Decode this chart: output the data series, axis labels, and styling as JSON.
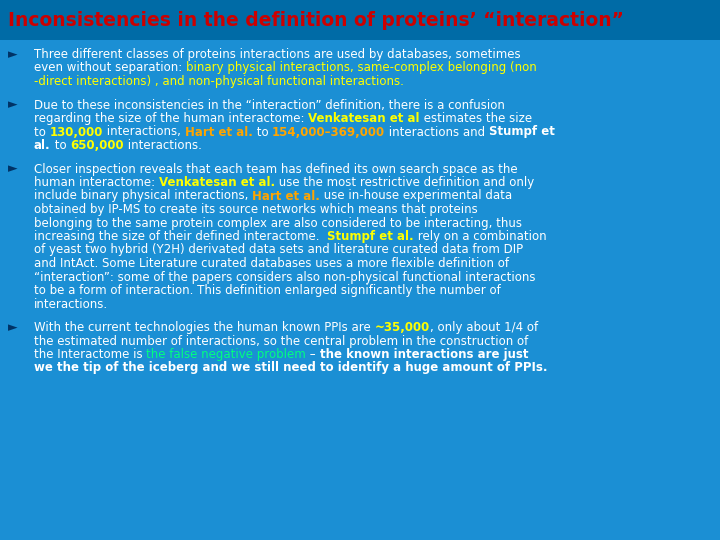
{
  "bg_color": "#1B8FD4",
  "title": "Inconsistencies in the definition of proteins’ “interaction”",
  "title_color": "#CC0000",
  "title_bg": "#006BA6",
  "paragraphs": [
    [
      [
        "Three different classes of proteins interactions are used by databases, sometimes\neven without separation: ",
        "#FFFFFF",
        false
      ],
      [
        "binary physical interactions, same-complex belonging (non\n-direct interactions) , and non-physical functional interactions.",
        "#FFFF00",
        false
      ]
    ],
    [
      [
        "Due to these inconsistencies in the “interaction” definition, there is a confusion\nregarding the size of the human interactome: ",
        "#FFFFFF",
        false
      ],
      [
        "Venkatesan et al",
        "#FFFF00",
        true
      ],
      [
        " estimates the size\nto ",
        "#FFFFFF",
        false
      ],
      [
        "130,000",
        "#FFFF00",
        true
      ],
      [
        " interactions, ",
        "#FFFFFF",
        false
      ],
      [
        "Hart et al.",
        "#FFA500",
        true
      ],
      [
        " to ",
        "#FFFFFF",
        false
      ],
      [
        "154,000–369,000",
        "#FFA500",
        true
      ],
      [
        " interactions and ",
        "#FFFFFF",
        false
      ],
      [
        "Stumpf et\nal.",
        "#FFFFFF",
        true
      ],
      [
        " to ",
        "#FFFFFF",
        false
      ],
      [
        "650,000",
        "#FFFF00",
        true
      ],
      [
        " interactions.",
        "#FFFFFF",
        false
      ]
    ],
    [
      [
        "Closer inspection reveals that each team has defined its own search space as the\nhuman interactome: ",
        "#FFFFFF",
        false
      ],
      [
        "Venkatesan et al.",
        "#FFFF00",
        true
      ],
      [
        " use the most restrictive definition and only\ninclude binary physical interactions, ",
        "#FFFFFF",
        false
      ],
      [
        "Hart et al.",
        "#FFA500",
        true
      ],
      [
        " use in-house experimental data\nobtained by IP-MS to create its source networks which means that proteins\nbelonging to the same protein complex are also considered to be interacting, thus\nincreasing the size of their defined interactome.  ",
        "#FFFFFF",
        false
      ],
      [
        "Stumpf et al.",
        "#FFFF00",
        true
      ],
      [
        " rely on a combination\nof yeast two hybrid (Y2H) derivated data sets and literature curated data from DIP\nand IntAct. Some Literature curated databases uses a more flexible definition of\n“interaction”: some of the papers considers also non-physical functional interactions\nto be a form of interaction. This definition enlarged significantly the number of\ninteractions.",
        "#FFFFFF",
        false
      ]
    ],
    [
      [
        "With the current technologies the human known PPIs are ",
        "#FFFFFF",
        false
      ],
      [
        "~35,000",
        "#FFFF00",
        true
      ],
      [
        ", only about 1/4 of\nthe estimated number of interactions, so the central problem in the construction of\nthe Interactome is ",
        "#FFFFFF",
        false
      ],
      [
        "the false negative problem",
        "#00FF80",
        false
      ],
      [
        " – ",
        "#FFFFFF",
        false
      ],
      [
        "the known interactions are just\nwe the tip of the iceberg and we still need to identify a huge amount of PPIs.",
        "#FFFFFF",
        true
      ]
    ]
  ]
}
